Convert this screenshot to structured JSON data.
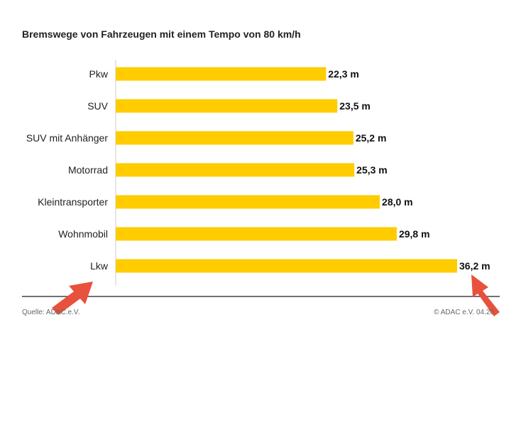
{
  "footer": {
    "source": "Quelle: ADAC.e.V.",
    "copyright": "© ADAC e.V. 04.20"
  },
  "colors": {
    "bar": "#ffcc00",
    "arrow": "#e8513b",
    "axis": "#444444"
  },
  "annotations": [
    "arrow-pointing-to-axis-origin",
    "arrow-pointing-to-longest-bar-label"
  ],
  "chart_data": {
    "type": "bar",
    "orientation": "horizontal",
    "title": "Bremswege von Fahrzeugen mit einem Tempo von 80 km/h",
    "categories": [
      "Pkw",
      "SUV",
      "SUV mit Anhänger",
      "Motorrad",
      "Kleintransporter",
      "Wohnmobil",
      "Lkw"
    ],
    "values": [
      22.3,
      23.5,
      25.2,
      25.3,
      28.0,
      29.8,
      36.2
    ],
    "value_labels": [
      "22,3 m",
      "23,5 m",
      "25,2 m",
      "25,3 m",
      "28,0 m",
      "29,8 m",
      "36,2 m"
    ],
    "unit": "m",
    "xlim": [
      0,
      36.2
    ],
    "grid": false
  }
}
